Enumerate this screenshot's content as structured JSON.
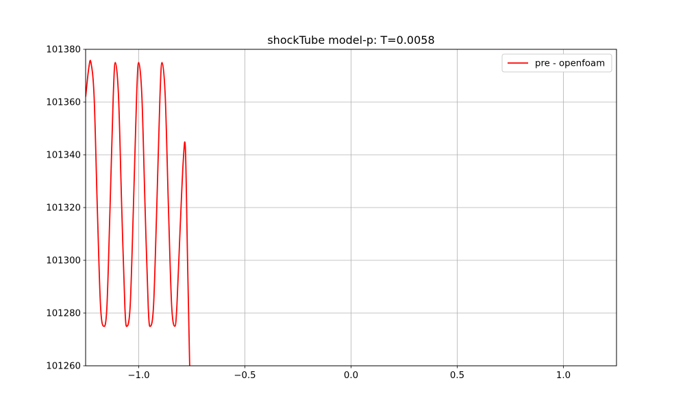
{
  "chart_data": {
    "type": "line",
    "title": "shockTube model-p: T=0.0058",
    "xlabel": "",
    "ylabel": "",
    "xlim": [
      -1.25,
      1.25
    ],
    "ylim": [
      101260,
      101380
    ],
    "xticks": [
      -1.0,
      -0.5,
      0.0,
      0.5,
      1.0
    ],
    "xtick_labels": [
      "−1.0",
      "−0.5",
      "0.0",
      "0.5",
      "1.0"
    ],
    "yticks": [
      101260,
      101280,
      101300,
      101320,
      101340,
      101360,
      101380
    ],
    "ytick_labels": [
      "101260",
      "101280",
      "101300",
      "101320",
      "101340",
      "101360",
      "101380"
    ],
    "grid": true,
    "legend_position": "top-right",
    "series": [
      {
        "name": "pre - openfoam",
        "color": "#ff0000",
        "x": [
          -1.25,
          -1.235,
          -1.225,
          -1.21,
          -1.195,
          -1.18,
          -1.165,
          -1.15,
          -1.135,
          -1.12,
          -1.11,
          -1.095,
          -1.08,
          -1.065,
          -1.055,
          -1.04,
          -1.025,
          -1.01,
          -1.0,
          -0.985,
          -0.97,
          -0.955,
          -0.945,
          -0.93,
          -0.915,
          -0.9,
          -0.89,
          -0.875,
          -0.86,
          -0.845,
          -0.83,
          -0.82,
          -0.805,
          -0.79,
          -0.78,
          -0.77,
          -0.76
        ],
        "y": [
          101362,
          101373,
          101375,
          101362,
          101320,
          101283,
          101275,
          101282,
          101320,
          101362,
          101375,
          101362,
          101320,
          101282,
          101275,
          101283,
          101320,
          101362,
          101375,
          101362,
          101320,
          101282,
          101275,
          101283,
          101320,
          101362,
          101375,
          101362,
          101320,
          101283,
          101275,
          101283,
          101312,
          101338,
          101342,
          101300,
          101260
        ]
      }
    ]
  }
}
